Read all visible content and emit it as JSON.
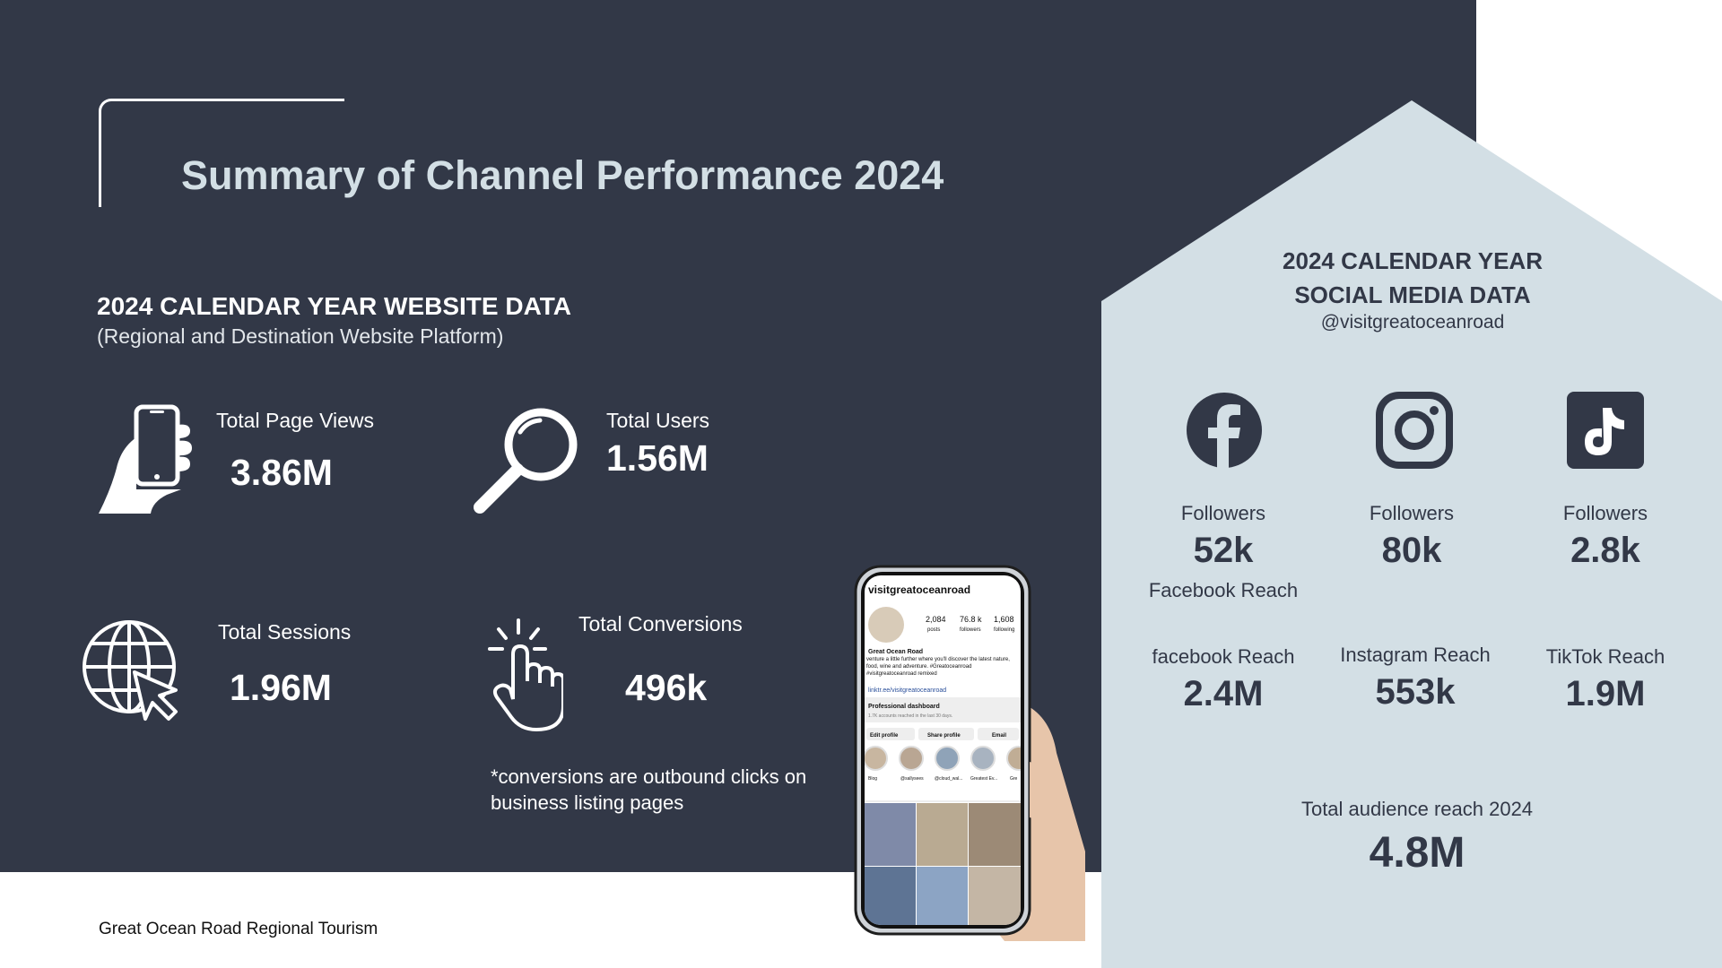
{
  "title": "Summary of Channel Performance 2024",
  "website": {
    "heading": "2024 CALENDAR YEAR WEBSITE DATA",
    "subheading": "(Regional and Destination Website Platform)",
    "page_views": {
      "label": "Total Page Views",
      "value": "3.86M"
    },
    "users": {
      "label": "Total Users",
      "value": "1.56M"
    },
    "sessions": {
      "label": "Total Sessions",
      "value": "1.96M"
    },
    "conversions": {
      "label": "Total Conversions",
      "value": "496k"
    },
    "footnote": "*conversions are outbound clicks on business listing pages"
  },
  "social": {
    "heading_line1": "2024 CALENDAR YEAR",
    "heading_line2": "SOCIAL MEDIA DATA",
    "handle": "@visitgreatoceanroad",
    "facebook": {
      "followers_label": "Followers",
      "followers": "52k",
      "reach_label_top": "Facebook Reach",
      "reach_label": "facebook Reach",
      "reach": "2.4M"
    },
    "instagram": {
      "followers_label": "Followers",
      "followers": "80k",
      "reach_label": "Instagram Reach",
      "reach": "553k"
    },
    "tiktok": {
      "followers_label": "Followers",
      "followers": "2.8k",
      "reach_label": "TikTok Reach",
      "reach": "1.9M"
    },
    "total_label": "Total audience reach 2024",
    "total": "4.8M"
  },
  "phone": {
    "username": "visitgreatoceanroad",
    "posts": "2,084",
    "posts_label": "posts",
    "followers": "76.8 k",
    "followers_label": "followers",
    "following": "1,608",
    "following_label": "following",
    "profile_name": "Great Ocean Road",
    "bio": "venture a little further where you'll discover the latest nature, food, wine and adventure. #Greatoceanroad #visitgreatoceanroad remixed",
    "link": "linktr.ee/visitgreatoceanroad",
    "dashboard_title": "Professional dashboard",
    "dashboard_sub": "1.7K accounts reached in the last 30 days.",
    "btn_edit": "Edit profile",
    "btn_share": "Share profile",
    "btn_email": "Email",
    "highlights": [
      "Blog",
      "@sallysees",
      "@cloud_wal...",
      "Greatest Ev...",
      "Gre"
    ]
  },
  "footer": "Great Ocean Road Regional Tourism",
  "colors": {
    "dark": "#323847",
    "light_panel": "#d3dfe5",
    "white": "#ffffff"
  }
}
